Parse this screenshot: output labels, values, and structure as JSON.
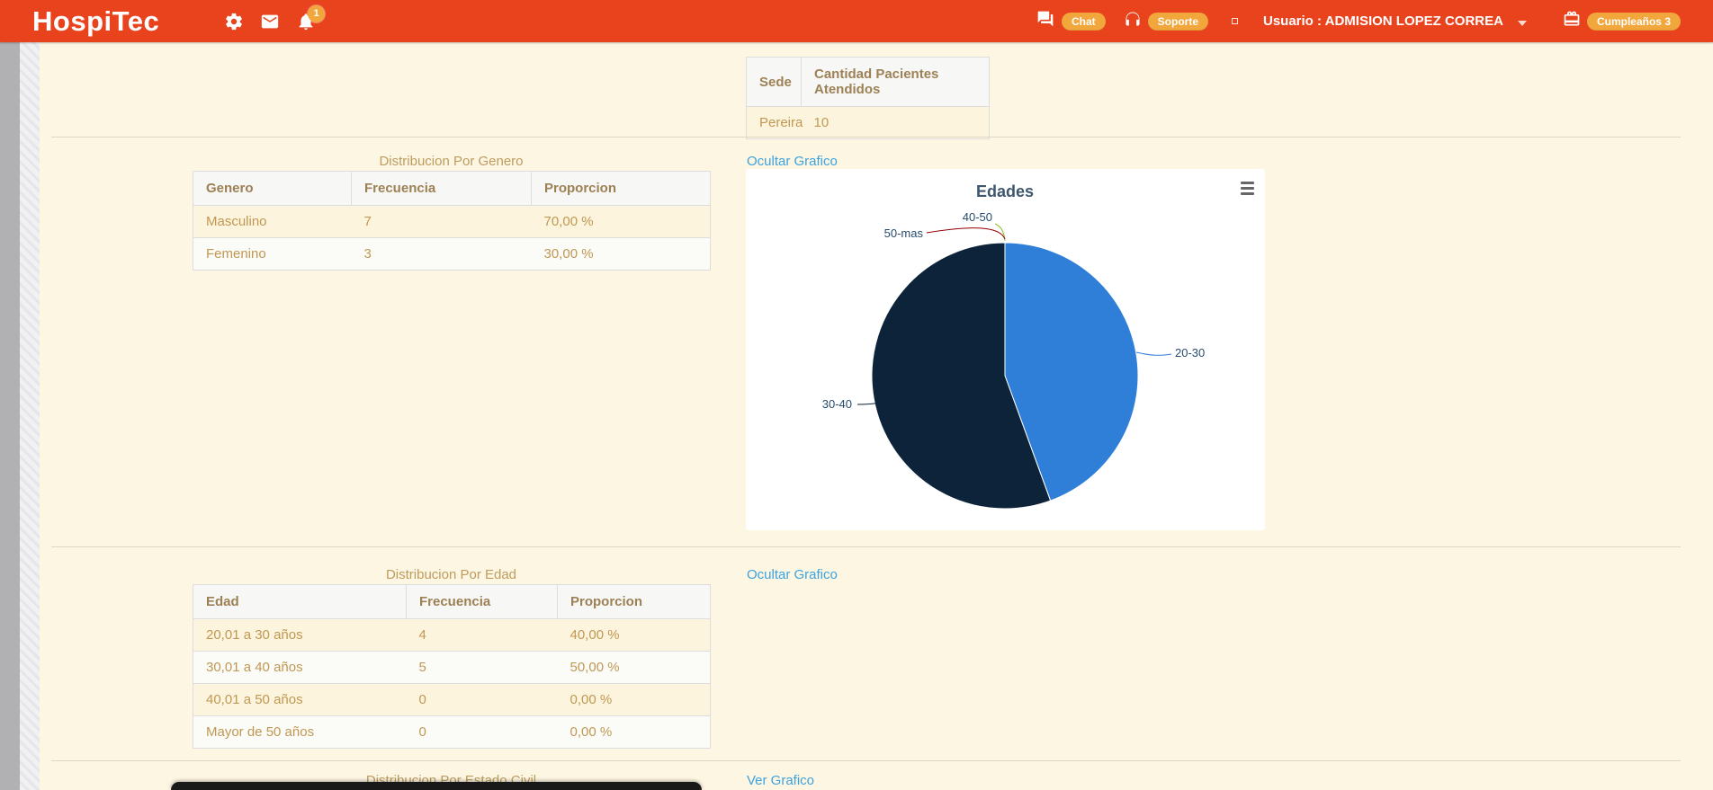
{
  "header": {
    "brand": "HospiTec",
    "bell_badge": "1",
    "chat_label": "Chat",
    "soporte_label": "Soporte",
    "user_label": "Usuario : ADMISION LOPEZ CORREA",
    "birthday_label": "Cumpleaños 3"
  },
  "sede_table": {
    "headers": [
      "Sede",
      "Cantidad Pacientes Atendidos"
    ],
    "rows": [
      [
        "Pereira",
        "10"
      ]
    ]
  },
  "genero": {
    "title": "Distribucion Por Genero",
    "toggle_link": "Ocultar Grafico",
    "headers": [
      "Genero",
      "Frecuencia",
      "Proporcion"
    ],
    "rows": [
      [
        "Masculino",
        "7",
        "70,00 %"
      ],
      [
        "Femenino",
        "3",
        "30,00 %"
      ]
    ]
  },
  "edad": {
    "title": "Distribucion Por Edad",
    "toggle_link": "Ocultar Grafico",
    "headers": [
      "Edad",
      "Frecuencia",
      "Proporcion"
    ],
    "rows": [
      [
        "20,01 a 30 años",
        "4",
        "40,00 %"
      ],
      [
        "30,01 a 40 años",
        "5",
        "50,00 %"
      ],
      [
        "40,01 a 50 años",
        "0",
        "0,00 %"
      ],
      [
        "Mayor de 50 años",
        "0",
        "0,00 %"
      ]
    ]
  },
  "estado_civil": {
    "title": "Distribucion Por Estado Civil",
    "toggle_link": "Ver Grafico"
  },
  "chart_data": {
    "type": "pie",
    "title": "Edades",
    "labels": [
      "20-30",
      "30-40",
      "40-50",
      "50-mas"
    ],
    "values": [
      4,
      5,
      0,
      0
    ],
    "colors": [
      "#2f7ed8",
      "#0d233a",
      "#8bbc21",
      "#910000"
    ],
    "legend_position": "none",
    "start_angle_deg": 0
  }
}
